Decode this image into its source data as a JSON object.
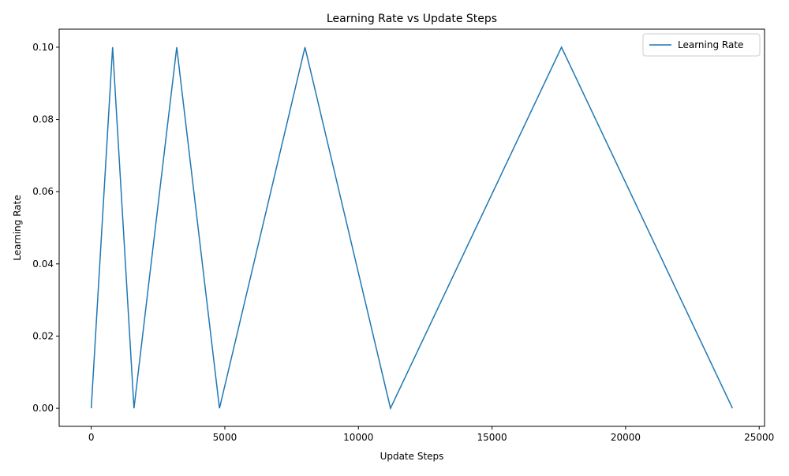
{
  "chart_data": {
    "type": "line",
    "title": "Learning Rate vs Update Steps",
    "xlabel": "Update Steps",
    "ylabel": "Learning Rate",
    "xlim": [
      -1200,
      25200
    ],
    "ylim": [
      -0.005,
      0.105
    ],
    "xticks": [
      0,
      5000,
      10000,
      15000,
      20000,
      25000
    ],
    "xtick_labels": [
      "0",
      "5000",
      "10000",
      "15000",
      "20000",
      "25000"
    ],
    "yticks": [
      0.0,
      0.02,
      0.04,
      0.06,
      0.08,
      0.1
    ],
    "ytick_labels": [
      "0.00",
      "0.02",
      "0.04",
      "0.06",
      "0.08",
      "0.10"
    ],
    "grid": false,
    "legend": {
      "position": "upper right"
    },
    "series": [
      {
        "name": "Learning Rate",
        "color": "#1f77b4",
        "x": [
          0,
          800,
          1600,
          3200,
          4800,
          8000,
          11200,
          17600,
          24000
        ],
        "y": [
          0.0,
          0.1,
          0.0,
          0.1,
          0.0,
          0.1,
          0.0,
          0.1,
          0.0
        ]
      }
    ]
  }
}
